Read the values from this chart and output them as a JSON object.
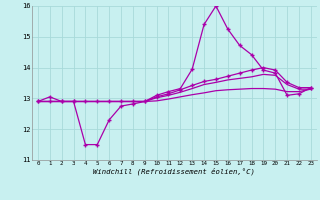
{
  "xlabel": "Windchill (Refroidissement éolien,°C)",
  "bg_color": "#c8f0f0",
  "grid_color": "#a8dada",
  "line_color": "#aa00aa",
  "xlim": [
    -0.5,
    23.5
  ],
  "ylim": [
    11,
    16
  ],
  "yticks": [
    11,
    12,
    13,
    14,
    15,
    16
  ],
  "xticks": [
    0,
    1,
    2,
    3,
    4,
    5,
    6,
    7,
    8,
    9,
    10,
    11,
    12,
    13,
    14,
    15,
    16,
    17,
    18,
    19,
    20,
    21,
    22,
    23
  ],
  "series1": [
    12.9,
    13.05,
    12.9,
    12.9,
    11.5,
    11.5,
    12.3,
    12.75,
    12.82,
    12.9,
    13.1,
    13.22,
    13.32,
    13.95,
    15.4,
    16.0,
    15.25,
    14.72,
    14.42,
    13.92,
    13.82,
    13.1,
    13.15,
    13.35
  ],
  "series2": [
    12.9,
    12.9,
    12.9,
    12.9,
    12.9,
    12.9,
    12.9,
    12.9,
    12.9,
    12.9,
    13.05,
    13.15,
    13.28,
    13.42,
    13.55,
    13.62,
    13.72,
    13.82,
    13.92,
    14.0,
    13.92,
    13.52,
    13.35,
    13.35
  ],
  "series3": [
    12.9,
    12.9,
    12.9,
    12.9,
    12.9,
    12.9,
    12.9,
    12.9,
    12.9,
    12.9,
    12.92,
    12.98,
    13.05,
    13.12,
    13.18,
    13.25,
    13.28,
    13.3,
    13.32,
    13.32,
    13.3,
    13.22,
    13.22,
    13.3
  ],
  "series4": [
    12.9,
    12.9,
    12.9,
    12.9,
    12.9,
    12.9,
    12.9,
    12.9,
    12.9,
    12.9,
    13.02,
    13.1,
    13.2,
    13.32,
    13.45,
    13.52,
    13.6,
    13.65,
    13.7,
    13.78,
    13.75,
    13.45,
    13.3,
    13.3
  ]
}
